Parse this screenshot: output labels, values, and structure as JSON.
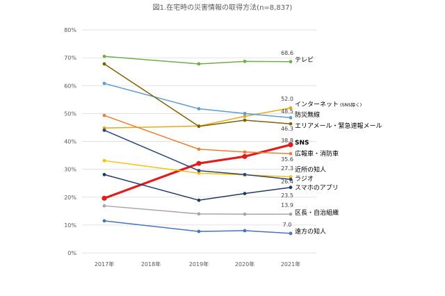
{
  "chart_data": {
    "type": "line",
    "title": "図1.在宅時の災害情報の取得方法(n=8,837)",
    "categories": [
      "2017年",
      "2018年",
      "2019年",
      "2020年",
      "2021年"
    ],
    "y_ticks": [
      "0%",
      "10%",
      "20%",
      "30%",
      "40%",
      "50%",
      "60%",
      "70%",
      "80%"
    ],
    "ylim": [
      0,
      80
    ],
    "grid": true,
    "series": [
      {
        "name": "テレビ",
        "color": "#70ad47",
        "values": [
          70.5,
          null,
          67.8,
          68.7,
          68.6
        ],
        "end_label": "68.6"
      },
      {
        "name": "インターネット",
        "name_note": "(SNS除く)",
        "color": "#e6a817",
        "values": [
          44.8,
          null,
          45.5,
          49.0,
          52.0
        ],
        "end_label": "52.0"
      },
      {
        "name": "防災無線",
        "color": "#5b9bd5",
        "values": [
          60.8,
          null,
          51.7,
          50.0,
          48.5
        ],
        "end_label": "48.5"
      },
      {
        "name": "エリアメール・緊急速報メール",
        "color": "#7f6000",
        "values": [
          67.8,
          null,
          45.4,
          47.6,
          46.3
        ],
        "end_label": "46.3"
      },
      {
        "name": "SNS",
        "color": "#e31b1b",
        "values": [
          19.6,
          null,
          32.1,
          34.6,
          38.8
        ],
        "end_label": "38.8",
        "bold": true
      },
      {
        "name": "広報車・消防車",
        "color": "#ed7d31",
        "values": [
          49.3,
          null,
          37.2,
          36.2,
          35.6
        ],
        "end_label": "35.6"
      },
      {
        "name": "近所の知人",
        "color": "#ffc000",
        "values": [
          33.1,
          null,
          28.6,
          28.0,
          27.3
        ],
        "end_label": "27.3"
      },
      {
        "name": "ラジオ",
        "color": "#264478",
        "values": [
          44.0,
          null,
          29.5,
          28.1,
          26.4
        ],
        "end_label": "26.4"
      },
      {
        "name": "スマホのアプリ",
        "color": "#203864",
        "values": [
          28.1,
          null,
          18.9,
          21.3,
          23.5
        ],
        "end_label": "23.5"
      },
      {
        "name": "区長・自治組織",
        "color": "#a5a5a5",
        "values": [
          16.9,
          null,
          14.0,
          13.9,
          13.9
        ],
        "end_label": "13.9"
      },
      {
        "name": "遠方の知人",
        "color": "#4472c4",
        "values": [
          11.5,
          null,
          7.7,
          8.0,
          7.0
        ],
        "end_label": "7.0"
      }
    ]
  }
}
